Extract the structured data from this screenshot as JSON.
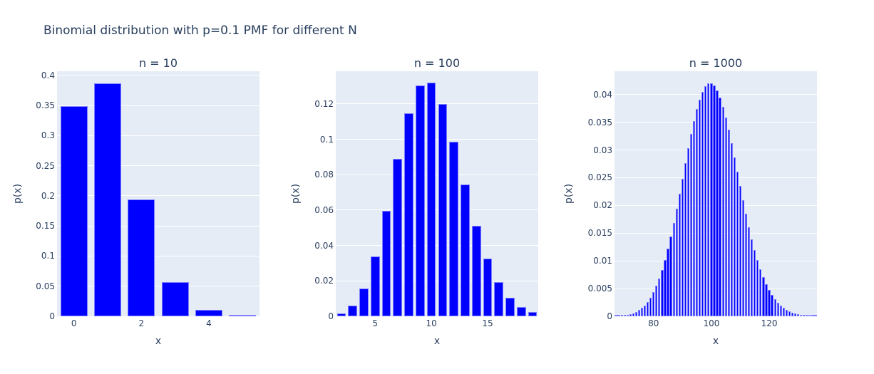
{
  "title": "Binomial distribution with p=0.1 PMF for different N",
  "colors": {
    "bar": "#0000ff",
    "bar_edge": "#7f7fff",
    "plot_bg": "#e5ecf6",
    "grid": "#ffffff",
    "text": "#2a3f5f"
  },
  "chart_data": [
    {
      "type": "bar",
      "title": "n = 10",
      "xlabel": "x",
      "ylabel": "p(x)",
      "xlim": [
        -0.5,
        5.5
      ],
      "ylim": [
        0,
        0.407
      ],
      "xticks": [
        0,
        2,
        4
      ],
      "yticks": [
        0,
        0.05,
        0.1,
        0.15,
        0.2,
        0.25,
        0.3,
        0.35,
        0.4
      ],
      "ytick_labels": [
        "0",
        "0.05",
        "0.1",
        "0.15",
        "0.2",
        "0.25",
        "0.3",
        "0.35",
        "0.4"
      ],
      "grid": true,
      "x": [
        0,
        1,
        2,
        3,
        4,
        5
      ],
      "values": [
        0.3487,
        0.3874,
        0.1937,
        0.0574,
        0.0112,
        0.0015
      ]
    },
    {
      "type": "bar",
      "title": "n = 100",
      "xlabel": "x",
      "ylabel": "p(x)",
      "xlim": [
        1.5,
        19.5
      ],
      "ylim": [
        0,
        0.1385
      ],
      "xticks": [
        5,
        10,
        15
      ],
      "yticks": [
        0,
        0.02,
        0.04,
        0.06,
        0.08,
        0.1,
        0.12
      ],
      "ytick_labels": [
        "0",
        "0.02",
        "0.04",
        "0.06",
        "0.08",
        "0.1",
        "0.12"
      ],
      "grid": true,
      "x": [
        2,
        3,
        4,
        5,
        6,
        7,
        8,
        9,
        10,
        11,
        12,
        13,
        14,
        15,
        16,
        17,
        18,
        19
      ],
      "values": [
        0.00162,
        0.00589,
        0.01588,
        0.03387,
        0.05958,
        0.0889,
        0.11482,
        0.13042,
        0.13187,
        0.11988,
        0.09879,
        0.0743,
        0.0513,
        0.03268,
        0.01929,
        0.01059,
        0.00543,
        0.0026
      ]
    },
    {
      "type": "bar",
      "title": "n = 1000",
      "xlabel": "x",
      "ylabel": "p(x)",
      "xlim": [
        66.5,
        136.5
      ],
      "ylim": [
        0,
        0.0442
      ],
      "xticks": [
        80,
        100,
        120
      ],
      "yticks": [
        0,
        0.005,
        0.01,
        0.015,
        0.02,
        0.025,
        0.03,
        0.035,
        0.04
      ],
      "ytick_labels": [
        "0",
        "0.005",
        "0.01",
        "0.015",
        "0.02",
        "0.025",
        "0.03",
        "0.035",
        "0.04"
      ],
      "grid": true,
      "x": [
        67,
        68,
        69,
        70,
        71,
        72,
        73,
        74,
        75,
        76,
        77,
        78,
        79,
        80,
        81,
        82,
        83,
        84,
        85,
        86,
        87,
        88,
        89,
        90,
        91,
        92,
        93,
        94,
        95,
        96,
        97,
        98,
        99,
        100,
        101,
        102,
        103,
        104,
        105,
        106,
        107,
        108,
        109,
        110,
        111,
        112,
        113,
        114,
        115,
        116,
        117,
        118,
        119,
        120,
        121,
        122,
        123,
        124,
        125,
        126,
        127,
        128,
        129,
        130,
        131,
        132,
        133,
        134,
        135,
        136
      ],
      "values": [
        5.81e-05,
        8.86e-05,
        0.000133,
        0.000197,
        0.000286,
        0.00041,
        0.000579,
        0.000806,
        0.001105,
        0.001495,
        0.001993,
        0.00262,
        0.003398,
        0.004346,
        0.005485,
        0.00683,
        0.008394,
        0.010182,
        0.012191,
        0.014412,
        0.016823,
        0.019393,
        0.02208,
        0.024833,
        0.027592,
        0.030291,
        0.032861,
        0.03523,
        0.037331,
        0.039103,
        0.040491,
        0.041455,
        0.041967,
        0.042014,
        0.041598,
        0.040737,
        0.039463,
        0.037818,
        0.035857,
        0.033639,
        0.031229,
        0.028691,
        0.026088,
        0.023479,
        0.020917,
        0.018448,
        0.016108,
        0.013926,
        0.011921,
        0.010106,
        0.008484,
        0.007054,
        0.005809,
        0.004739,
        0.003829,
        0.003065,
        0.002431,
        0.001911,
        0.001488,
        0.001148,
        0.000878,
        0.000665,
        0.0005,
        0.000372,
        0.000274,
        0.000201,
        0.000146,
        0.000105,
        7.48e-05,
        5.28e-05
      ]
    }
  ]
}
